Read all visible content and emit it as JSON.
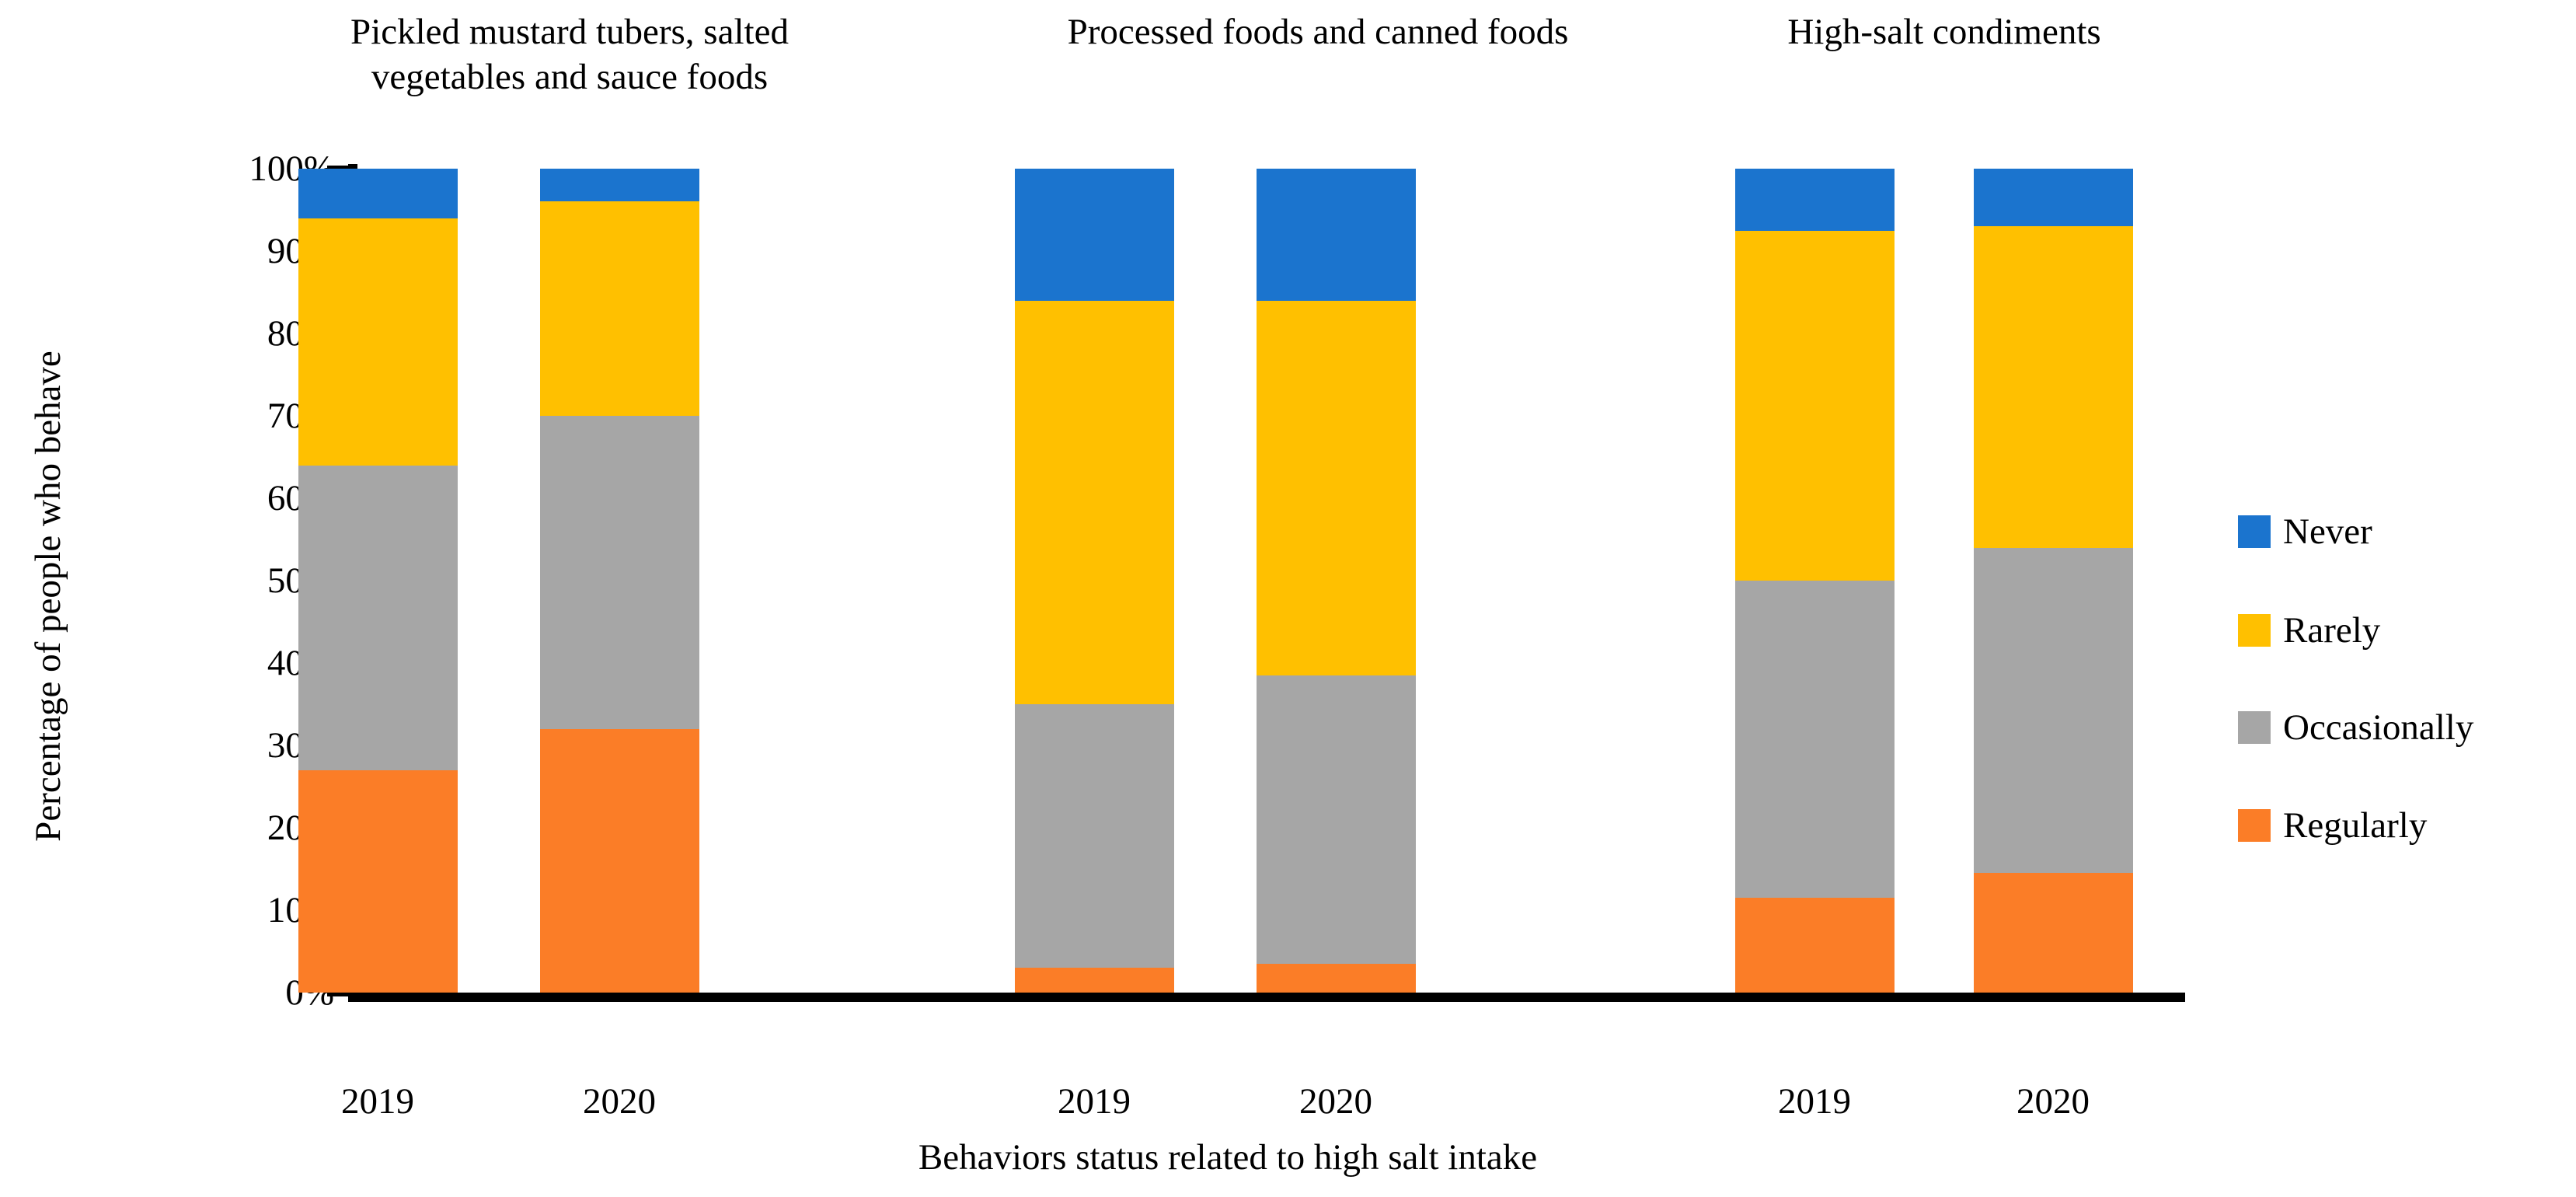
{
  "chart_data": {
    "type": "bar",
    "stacked": true,
    "xlabel": "Behaviors status related to high salt intake",
    "ylabel": "Percentage of people who behave",
    "ylim": [
      0,
      100
    ],
    "grid": false,
    "legend_position": "right",
    "yticks": [
      {
        "label": "0%",
        "value": 0
      },
      {
        "label": "10%",
        "value": 10
      },
      {
        "label": "20%",
        "value": 20
      },
      {
        "label": "30%",
        "value": 30
      },
      {
        "label": "40%",
        "value": 40
      },
      {
        "label": "50%",
        "value": 50
      },
      {
        "label": "60%",
        "value": 60
      },
      {
        "label": "70%",
        "value": 70
      },
      {
        "label": "80%",
        "value": 80
      },
      {
        "label": "90%",
        "value": 90
      },
      {
        "label": "100%",
        "value": 100
      }
    ],
    "series_order_bottom_to_top": [
      "Regularly",
      "Occasionally",
      "Rarely",
      "Never"
    ],
    "series_colors": {
      "Regularly": "#FB7D27",
      "Occasionally": "#A6A6A6",
      "Rarely": "#FFC000",
      "Never": "#1B74CE"
    },
    "legend": [
      {
        "label": "Never",
        "color": "#1B74CE"
      },
      {
        "label": "Rarely",
        "color": "#FFC000"
      },
      {
        "label": "Occasionally",
        "color": "#A6A6A6"
      },
      {
        "label": "Regularly",
        "color": "#FB7D27"
      }
    ],
    "groups": [
      {
        "title": "Pickled mustard tubers, salted vegetables and sauce foods",
        "title_lines": [
          "Pickled mustard tubers, salted",
          "vegetables and sauce foods"
        ],
        "bars": [
          {
            "category": "2019",
            "values": {
              "Regularly": 27,
              "Occasionally": 37,
              "Rarely": 30,
              "Never": 6
            }
          },
          {
            "category": "2020",
            "values": {
              "Regularly": 32,
              "Occasionally": 38,
              "Rarely": 26,
              "Never": 4
            }
          }
        ]
      },
      {
        "title": "Processed foods and canned foods",
        "title_lines": [
          "Processed foods and canned foods"
        ],
        "bars": [
          {
            "category": "2019",
            "values": {
              "Regularly": 3,
              "Occasionally": 32,
              "Rarely": 49,
              "Never": 16
            }
          },
          {
            "category": "2020",
            "values": {
              "Regularly": 3.5,
              "Occasionally": 35,
              "Rarely": 45.5,
              "Never": 16
            }
          }
        ]
      },
      {
        "title": "High-salt condiments",
        "title_lines": [
          "High-salt condiments"
        ],
        "bars": [
          {
            "category": "2019",
            "values": {
              "Regularly": 11.5,
              "Occasionally": 38.5,
              "Rarely": 42.5,
              "Never": 7.5
            }
          },
          {
            "category": "2020",
            "values": {
              "Regularly": 14.5,
              "Occasionally": 39.5,
              "Rarely": 39,
              "Never": 7
            }
          }
        ]
      }
    ]
  }
}
